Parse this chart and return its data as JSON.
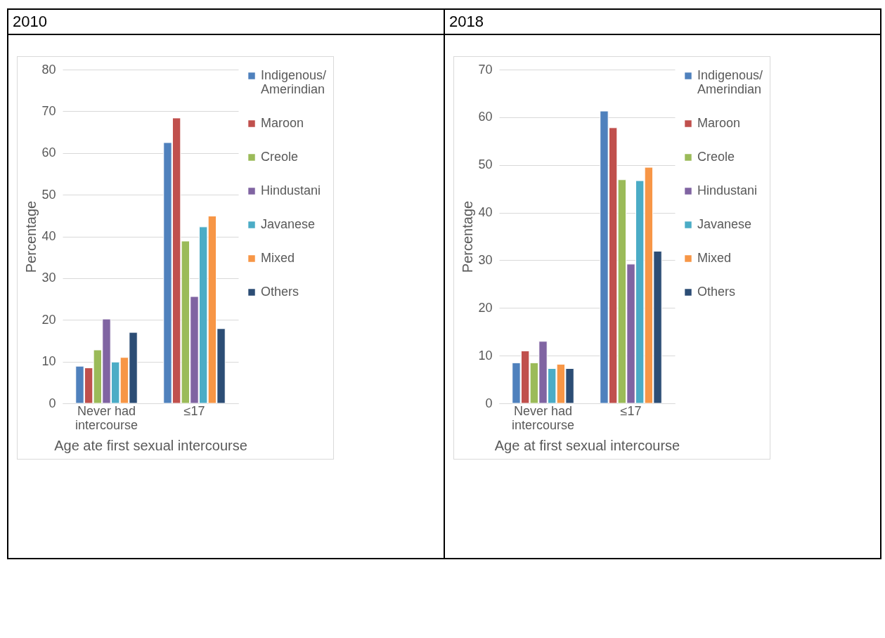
{
  "chart_data": [
    {
      "type": "bar",
      "title": "2010",
      "xlabel": "Age ate first sexual intercourse",
      "ylabel": "Percentage",
      "categories": [
        "Never had intercourse",
        "≤17"
      ],
      "ylim": [
        0,
        80
      ],
      "yticks": [
        0,
        10,
        20,
        30,
        40,
        50,
        60,
        70,
        80
      ],
      "grid": "y",
      "legend": "right",
      "series": [
        {
          "name": "Indigenous/ Amerindian",
          "color": "#4f81bd",
          "values": [
            8.9,
            62.5
          ]
        },
        {
          "name": "Maroon",
          "color": "#c0504d",
          "values": [
            8.5,
            68.4
          ]
        },
        {
          "name": "Creole",
          "color": "#9bbb59",
          "values": [
            12.8,
            38.9
          ]
        },
        {
          "name": "Hindustani",
          "color": "#8064a2",
          "values": [
            20.2,
            25.6
          ]
        },
        {
          "name": "Javanese",
          "color": "#4bacc6",
          "values": [
            9.9,
            42.3
          ]
        },
        {
          "name": "Mixed",
          "color": "#f79646",
          "values": [
            11.0,
            44.9
          ]
        },
        {
          "name": "Others",
          "color": "#2c4d75",
          "values": [
            17.0,
            17.9
          ]
        }
      ]
    },
    {
      "type": "bar",
      "title": "2018",
      "xlabel": "Age at first sexual intercourse",
      "ylabel": "Percentage",
      "categories": [
        "Never had intercourse",
        "≤17"
      ],
      "ylim": [
        0,
        70
      ],
      "yticks": [
        0,
        10,
        20,
        30,
        40,
        50,
        60,
        70
      ],
      "grid": "y",
      "legend": "right",
      "series": [
        {
          "name": "Indigenous/ Amerindian",
          "color": "#4f81bd",
          "values": [
            8.5,
            61.3
          ]
        },
        {
          "name": "Maroon",
          "color": "#c0504d",
          "values": [
            11.0,
            57.8
          ]
        },
        {
          "name": "Creole",
          "color": "#9bbb59",
          "values": [
            8.5,
            46.9
          ]
        },
        {
          "name": "Hindustani",
          "color": "#8064a2",
          "values": [
            13.0,
            29.2
          ]
        },
        {
          "name": "Javanese",
          "color": "#4bacc6",
          "values": [
            7.3,
            46.7
          ]
        },
        {
          "name": "Mixed",
          "color": "#f79646",
          "values": [
            8.2,
            49.5
          ]
        },
        {
          "name": "Others",
          "color": "#2c4d75",
          "values": [
            7.3,
            31.9
          ]
        }
      ]
    }
  ]
}
